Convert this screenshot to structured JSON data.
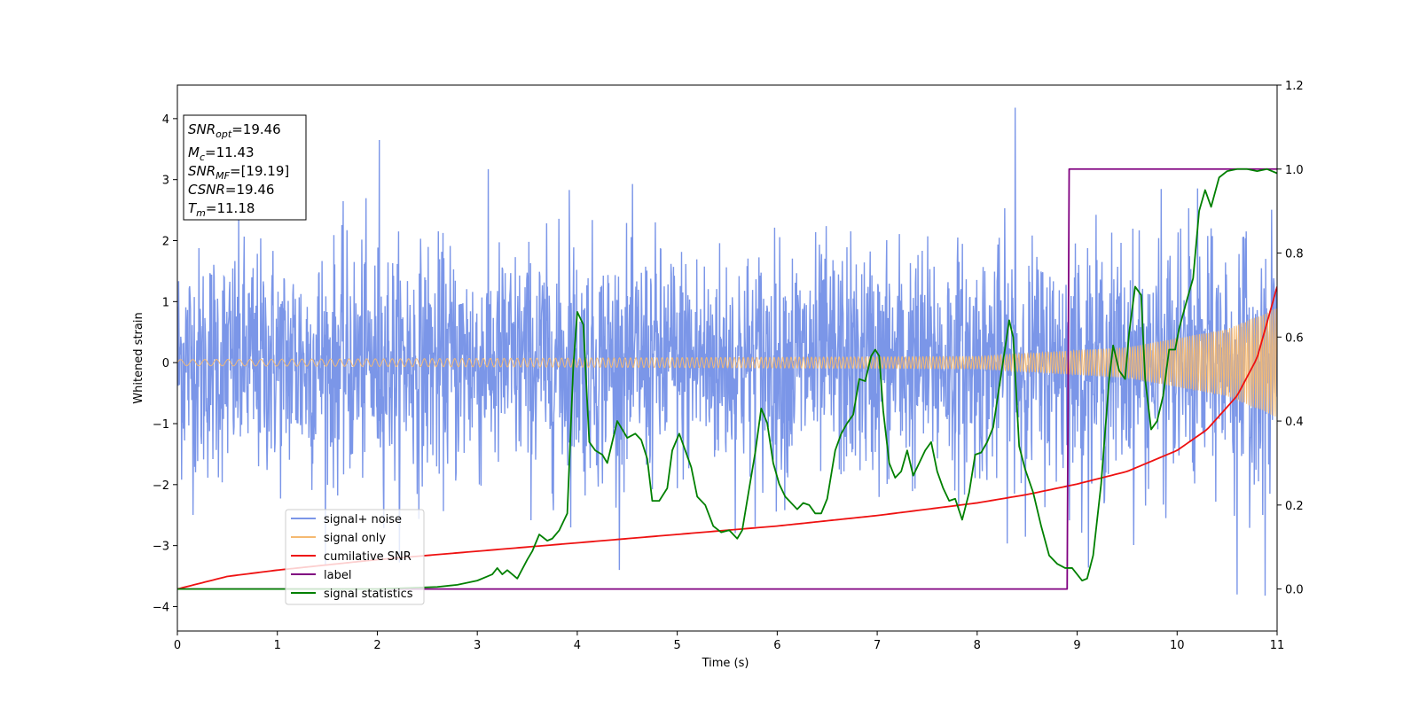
{
  "chart_data": {
    "type": "line",
    "xlabel": "Time (s)",
    "ylabel": "Whitened strain",
    "xlim": [
      0,
      11
    ],
    "ylim_left": [
      -4.4,
      4.55
    ],
    "ylim_right": [
      -0.1,
      1.2
    ],
    "x_ticks": [
      "0",
      "1",
      "2",
      "3",
      "4",
      "5",
      "6",
      "7",
      "8",
      "9",
      "10",
      "11"
    ],
    "y_ticks_left": [
      "−4",
      "−3",
      "−2",
      "−1",
      "0",
      "1",
      "2",
      "3",
      "4"
    ],
    "y_ticks_right": [
      "0.0",
      "0.2",
      "0.4",
      "0.6",
      "0.8",
      "1.0",
      "1.2"
    ],
    "legend_position": "lower-left",
    "info_box": [
      {
        "main": "SNR",
        "sub": "opt",
        "value": "=19.46"
      },
      {
        "main": "M",
        "sub": "c",
        "value": "=11.43"
      },
      {
        "main": "SNR",
        "sub": "MF",
        "value": "=[19.19]"
      },
      {
        "main": "CSNR",
        "sub": "",
        "value": "=19.46"
      },
      {
        "main": "T",
        "sub": "m",
        "value": "=11.18"
      }
    ],
    "series": [
      {
        "name": "signal+ noise",
        "axis": "left",
        "color": "#7b96e8",
        "description_kind": "noisy",
        "noise_std": 0.95,
        "peak_examples": [
          [
            2.02,
            3.65
          ],
          [
            8.38,
            4.18
          ],
          [
            10.6,
            -3.8
          ],
          [
            10.88,
            -3.82
          ],
          [
            3.92,
            2.83
          ]
        ]
      },
      {
        "name": "signal only",
        "axis": "left",
        "color": "#f5b971",
        "chirp_amplitude": [
          [
            0,
            0.05
          ],
          [
            8,
            0.1
          ],
          [
            9.5,
            0.25
          ],
          [
            10.5,
            0.55
          ],
          [
            11,
            0.9
          ]
        ]
      },
      {
        "name": "cumilative SNR",
        "axis": "right",
        "color": "#ee1111",
        "x": [
          0,
          0.5,
          1,
          2,
          3,
          4,
          5,
          6,
          7,
          8,
          8.5,
          9,
          9.5,
          10,
          10.3,
          10.6,
          10.8,
          11
        ],
        "y": [
          0.0,
          0.03,
          0.045,
          0.07,
          0.09,
          0.11,
          0.13,
          0.15,
          0.175,
          0.205,
          0.225,
          0.25,
          0.28,
          0.33,
          0.38,
          0.46,
          0.55,
          0.72
        ]
      },
      {
        "name": "label",
        "axis": "right",
        "color": "#800080",
        "x": [
          0,
          8.9,
          8.92,
          11
        ],
        "y": [
          0,
          0,
          1,
          1
        ]
      },
      {
        "name": "signal statistics",
        "axis": "right",
        "color": "#008000",
        "x": [
          0,
          1,
          2,
          2.6,
          2.8,
          3.0,
          3.1,
          3.15,
          3.2,
          3.25,
          3.3,
          3.4,
          3.5,
          3.55,
          3.62,
          3.7,
          3.75,
          3.82,
          3.9,
          3.96,
          4.0,
          4.06,
          4.12,
          4.18,
          4.25,
          4.3,
          4.35,
          4.4,
          4.5,
          4.58,
          4.64,
          4.7,
          4.75,
          4.82,
          4.9,
          4.95,
          5.02,
          5.08,
          5.14,
          5.2,
          5.28,
          5.36,
          5.44,
          5.52,
          5.6,
          5.65,
          5.72,
          5.78,
          5.84,
          5.9,
          5.96,
          6.02,
          6.08,
          6.12,
          6.2,
          6.26,
          6.32,
          6.38,
          6.44,
          6.5,
          6.58,
          6.64,
          6.7,
          6.76,
          6.82,
          6.88,
          6.94,
          6.98,
          7.02,
          7.06,
          7.12,
          7.18,
          7.24,
          7.3,
          7.36,
          7.42,
          7.48,
          7.54,
          7.6,
          7.66,
          7.72,
          7.78,
          7.85,
          7.92,
          7.98,
          8.04,
          8.1,
          8.16,
          8.22,
          8.28,
          8.32,
          8.36,
          8.42,
          8.48,
          8.56,
          8.64,
          8.72,
          8.8,
          8.88,
          8.95,
          9.05,
          9.1,
          9.16,
          9.24,
          9.32,
          9.36,
          9.42,
          9.48,
          9.52,
          9.58,
          9.64,
          9.68,
          9.74,
          9.8,
          9.86,
          9.92,
          9.98,
          10.02,
          10.1,
          10.16,
          10.22,
          10.28,
          10.34,
          10.42,
          10.5,
          10.6,
          10.7,
          10.8,
          10.9,
          11.0
        ],
        "y": [
          0.0,
          0.0,
          0.0,
          0.005,
          0.01,
          0.02,
          0.03,
          0.035,
          0.05,
          0.035,
          0.045,
          0.025,
          0.07,
          0.09,
          0.13,
          0.115,
          0.12,
          0.14,
          0.18,
          0.53,
          0.66,
          0.63,
          0.35,
          0.33,
          0.32,
          0.3,
          0.35,
          0.4,
          0.36,
          0.37,
          0.355,
          0.31,
          0.21,
          0.21,
          0.24,
          0.33,
          0.37,
          0.33,
          0.29,
          0.22,
          0.2,
          0.15,
          0.135,
          0.14,
          0.12,
          0.14,
          0.24,
          0.325,
          0.43,
          0.395,
          0.3,
          0.25,
          0.22,
          0.21,
          0.19,
          0.205,
          0.2,
          0.18,
          0.18,
          0.215,
          0.33,
          0.37,
          0.395,
          0.415,
          0.5,
          0.495,
          0.555,
          0.57,
          0.555,
          0.425,
          0.3,
          0.265,
          0.28,
          0.33,
          0.27,
          0.3,
          0.33,
          0.35,
          0.28,
          0.24,
          0.21,
          0.215,
          0.165,
          0.23,
          0.32,
          0.325,
          0.35,
          0.385,
          0.48,
          0.575,
          0.64,
          0.6,
          0.34,
          0.285,
          0.23,
          0.15,
          0.08,
          0.06,
          0.05,
          0.05,
          0.02,
          0.025,
          0.08,
          0.25,
          0.5,
          0.58,
          0.52,
          0.5,
          0.61,
          0.72,
          0.7,
          0.5,
          0.38,
          0.4,
          0.46,
          0.57,
          0.57,
          0.62,
          0.69,
          0.74,
          0.9,
          0.95,
          0.91,
          0.98,
          0.995,
          1.0,
          1.0,
          0.995,
          1.0,
          0.99
        ]
      }
    ]
  }
}
